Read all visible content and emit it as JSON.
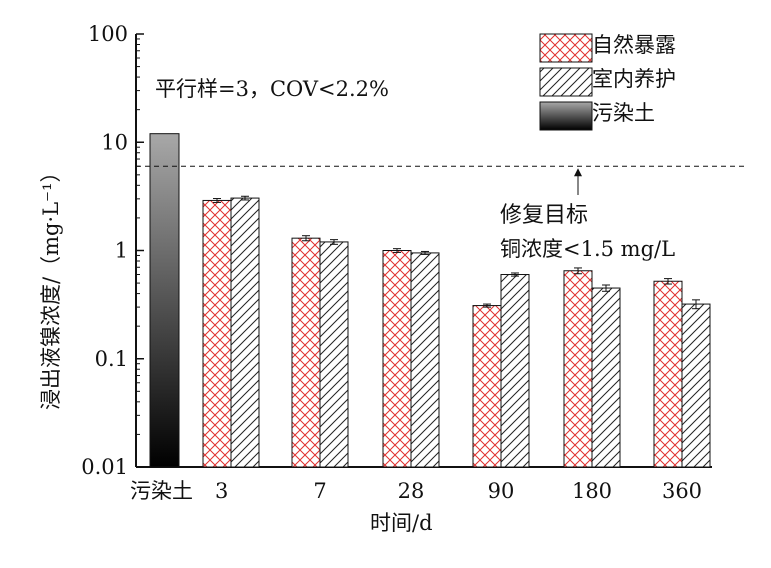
{
  "chart_data": {
    "type": "bar",
    "title": "",
    "xlabel": "时间/d",
    "ylabel": "浸出液镍浓度/（mg·L⁻¹）",
    "yscale": "log",
    "ylim": [
      0.01,
      100
    ],
    "yticks": [
      "0.01",
      "0.1",
      "1",
      "10",
      "100"
    ],
    "categories": [
      "3",
      "7",
      "28",
      "90",
      "180",
      "360"
    ],
    "control": {
      "name": "污染土",
      "category": "污染土",
      "value": 12
    },
    "series": [
      {
        "name": "自然暴露",
        "values": [
          2.9,
          1.3,
          1.0,
          0.31,
          0.65,
          0.52
        ],
        "errors": [
          0.12,
          0.07,
          0.04,
          0.01,
          0.04,
          0.03
        ],
        "pattern": "crosshatch",
        "color": "#e0302e"
      },
      {
        "name": "室内养护",
        "values": [
          3.05,
          1.2,
          0.95,
          0.6,
          0.45,
          0.32
        ],
        "errors": [
          0.12,
          0.06,
          0.03,
          0.02,
          0.03,
          0.03
        ],
        "pattern": "diagonal",
        "color": "#222222"
      }
    ],
    "threshold": {
      "value": 6,
      "label_line1": "修复目标",
      "label_line2": "铜浓度<1.5 mg/L"
    },
    "annotation": "平行样=3，COV<2.2%",
    "legend_position": "top-right"
  }
}
